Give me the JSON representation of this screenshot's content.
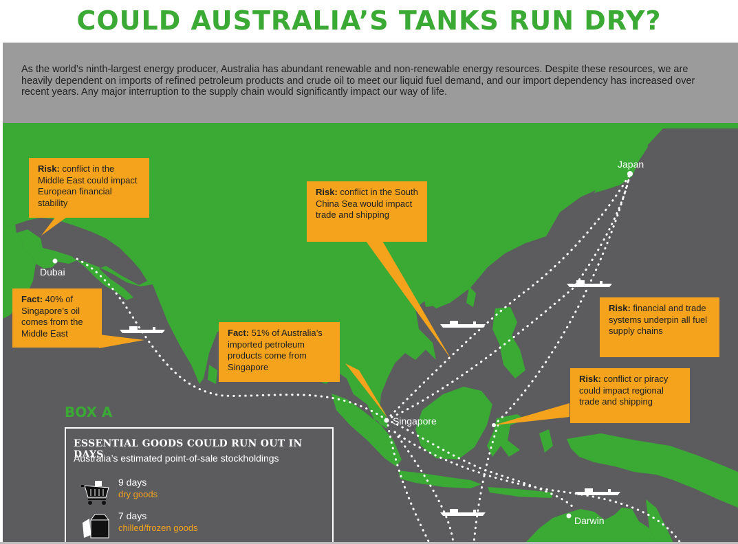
{
  "title": "COULD AUSTRALIA’S TANKS RUN DRY?",
  "intro": "As the world’s ninth-largest energy producer, Australia has abundant renewable and non-renewable energy resources. Despite these resources, we are heavily dependent on imports of refined petroleum products and crude oil to meet our liquid fuel demand, and our import dependency has increased over recent years. Any major interruption to the supply chain would significantly impact our way of life.",
  "colors": {
    "land": "#3aaa35",
    "sea": "#5c5c5e",
    "callout": "#f5a21d",
    "header_band": "#9b9b9b"
  },
  "callouts": {
    "middle_east": {
      "label": "Risk:",
      "text": " conflict in the Middle East could impact European financial stability"
    },
    "singapore_oil": {
      "label": "Fact:",
      "text": " 40% of Singapore’s oil comes from the Middle East"
    },
    "south_china_sea": {
      "label": "Risk:",
      "text": " conflict in the South China Sea would impact trade and shipping"
    },
    "imports": {
      "label": "Fact:",
      "text": " 51% of Australia’s imported petroleum products come from Singapore"
    },
    "financial": {
      "label": "Risk:",
      "text": " financial and trade systems underpin all fuel supply chains"
    },
    "piracy": {
      "label": "Risk:",
      "text": " conflict or piracy could impact regional trade and shipping"
    }
  },
  "cities": {
    "japan": "Japan",
    "dubai": "Dubai",
    "singapore": "Singapore",
    "darwin": "Darwin"
  },
  "box_a": {
    "heading": "BOX A",
    "title": "ESSENTIAL GOODS COULD RUN OUT IN DAYS",
    "subtitle": "Australia’s estimated point-of-sale stockholdings",
    "items": [
      {
        "days": "9 days",
        "label": "dry goods",
        "icon": "shopping-cart-icon"
      },
      {
        "days": "7 days",
        "label": "chilled/frozen goods",
        "icon": "milk-carton-icon"
      }
    ]
  }
}
